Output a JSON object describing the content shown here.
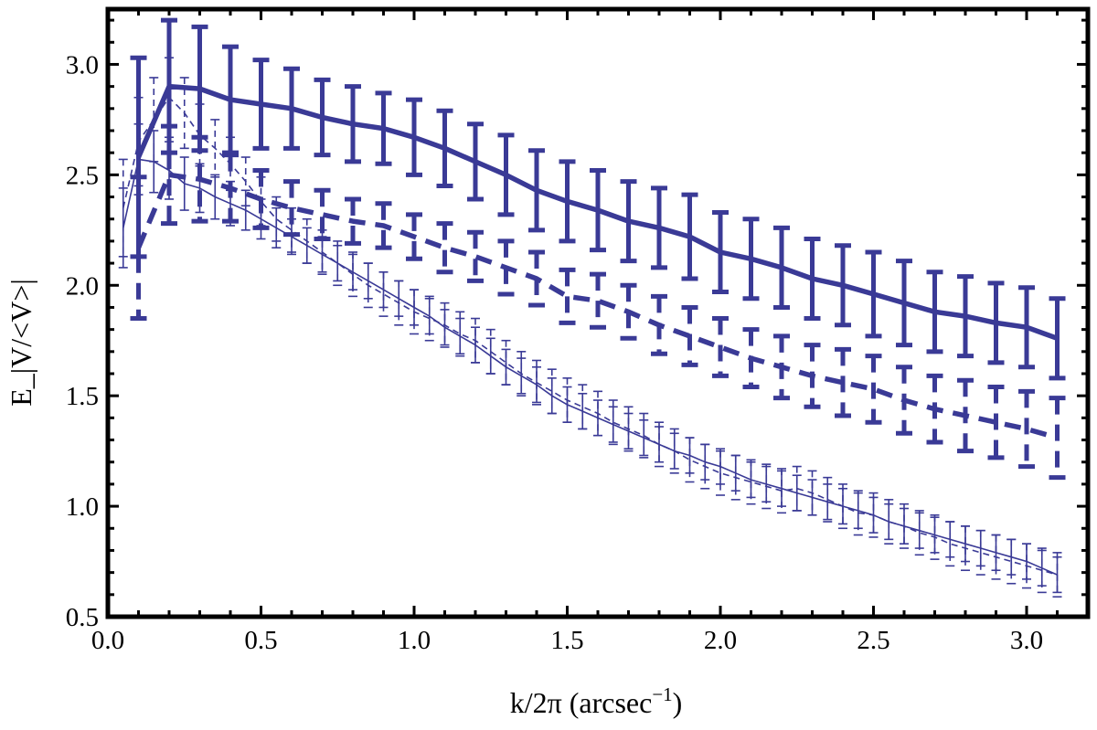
{
  "chart_data": {
    "type": "line",
    "title": "",
    "xlabel": "k/2π (arcsec",
    "xlabel_superscript": "−1",
    "xlabel_suffix": ")",
    "ylabel": "E_|V/<V>|",
    "xlim": [
      0.0,
      3.2
    ],
    "ylim": [
      0.5,
      3.25
    ],
    "x_ticks": [
      "0.0",
      "0.5",
      "1.0",
      "1.5",
      "2.0",
      "2.5",
      "3.0"
    ],
    "y_ticks": [
      "0.5",
      "1.0",
      "1.5",
      "2.0",
      "2.5",
      "3.0"
    ],
    "grid": false,
    "color": "#3a3a96",
    "series": [
      {
        "style": "solid-thick",
        "x": [
          0.1,
          0.2,
          0.3,
          0.4,
          0.5,
          0.6,
          0.7,
          0.8,
          0.9,
          1.0,
          1.1,
          1.2,
          1.3,
          1.4,
          1.5,
          1.6,
          1.7,
          1.8,
          1.9,
          2.0,
          2.1,
          2.2,
          2.3,
          2.4,
          2.5,
          2.6,
          2.7,
          2.8,
          2.9,
          3.0,
          3.1
        ],
        "y": [
          2.58,
          2.9,
          2.89,
          2.84,
          2.82,
          2.8,
          2.76,
          2.73,
          2.71,
          2.67,
          2.62,
          2.56,
          2.5,
          2.43,
          2.38,
          2.34,
          2.29,
          2.26,
          2.22,
          2.15,
          2.12,
          2.08,
          2.03,
          2.0,
          1.96,
          1.92,
          1.88,
          1.86,
          1.83,
          1.81,
          1.76
        ],
        "err": [
          0.45,
          0.3,
          0.28,
          0.24,
          0.2,
          0.18,
          0.17,
          0.17,
          0.16,
          0.17,
          0.17,
          0.17,
          0.18,
          0.18,
          0.18,
          0.18,
          0.18,
          0.18,
          0.19,
          0.18,
          0.18,
          0.18,
          0.18,
          0.18,
          0.19,
          0.19,
          0.18,
          0.18,
          0.18,
          0.18,
          0.18
        ]
      },
      {
        "style": "dashed-thick",
        "x": [
          0.1,
          0.2,
          0.3,
          0.4,
          0.5,
          0.6,
          0.7,
          0.8,
          0.9,
          1.0,
          1.1,
          1.2,
          1.3,
          1.4,
          1.5,
          1.6,
          1.7,
          1.8,
          1.9,
          2.0,
          2.1,
          2.2,
          2.3,
          2.4,
          2.5,
          2.6,
          2.7,
          2.8,
          2.9,
          3.0,
          3.1
        ],
        "y": [
          2.17,
          2.5,
          2.48,
          2.44,
          2.39,
          2.35,
          2.32,
          2.29,
          2.27,
          2.22,
          2.17,
          2.13,
          2.08,
          2.03,
          1.95,
          1.93,
          1.88,
          1.82,
          1.77,
          1.72,
          1.67,
          1.63,
          1.59,
          1.56,
          1.53,
          1.48,
          1.44,
          1.41,
          1.38,
          1.35,
          1.31
        ],
        "err": [
          0.32,
          0.22,
          0.19,
          0.15,
          0.13,
          0.12,
          0.11,
          0.1,
          0.1,
          0.1,
          0.11,
          0.11,
          0.12,
          0.12,
          0.12,
          0.12,
          0.12,
          0.13,
          0.13,
          0.13,
          0.13,
          0.14,
          0.14,
          0.15,
          0.15,
          0.15,
          0.15,
          0.16,
          0.16,
          0.17,
          0.18
        ]
      },
      {
        "style": "solid-thin",
        "x": [
          0.05,
          0.1,
          0.15,
          0.2,
          0.25,
          0.3,
          0.35,
          0.4,
          0.45,
          0.5,
          0.55,
          0.6,
          0.65,
          0.7,
          0.75,
          0.8,
          0.85,
          0.9,
          0.95,
          1.0,
          1.05,
          1.1,
          1.15,
          1.2,
          1.25,
          1.3,
          1.35,
          1.4,
          1.45,
          1.5,
          1.55,
          1.6,
          1.65,
          1.7,
          1.75,
          1.8,
          1.85,
          1.9,
          1.95,
          2.0,
          2.05,
          2.1,
          2.15,
          2.2,
          2.25,
          2.3,
          2.35,
          2.4,
          2.45,
          2.5,
          2.55,
          2.6,
          2.65,
          2.7,
          2.75,
          2.8,
          2.85,
          2.9,
          2.95,
          3.0,
          3.05,
          3.1
        ],
        "y": [
          2.26,
          2.57,
          2.56,
          2.52,
          2.46,
          2.44,
          2.4,
          2.37,
          2.34,
          2.3,
          2.26,
          2.22,
          2.18,
          2.14,
          2.1,
          2.06,
          2.02,
          1.98,
          1.94,
          1.9,
          1.86,
          1.81,
          1.77,
          1.73,
          1.68,
          1.63,
          1.59,
          1.55,
          1.5,
          1.46,
          1.43,
          1.4,
          1.37,
          1.34,
          1.31,
          1.28,
          1.25,
          1.23,
          1.2,
          1.18,
          1.15,
          1.12,
          1.1,
          1.08,
          1.06,
          1.04,
          1.02,
          1.0,
          0.98,
          0.96,
          0.93,
          0.91,
          0.89,
          0.87,
          0.85,
          0.83,
          0.81,
          0.79,
          0.77,
          0.75,
          0.72,
          0.69
        ],
        "err": [
          0.18,
          0.16,
          0.14,
          0.13,
          0.12,
          0.11,
          0.1,
          0.1,
          0.09,
          0.09,
          0.09,
          0.08,
          0.08,
          0.08,
          0.08,
          0.08,
          0.08,
          0.08,
          0.08,
          0.08,
          0.08,
          0.08,
          0.08,
          0.08,
          0.08,
          0.08,
          0.08,
          0.08,
          0.08,
          0.08,
          0.08,
          0.08,
          0.08,
          0.08,
          0.08,
          0.08,
          0.08,
          0.08,
          0.08,
          0.08,
          0.08,
          0.08,
          0.08,
          0.08,
          0.08,
          0.08,
          0.08,
          0.08,
          0.08,
          0.08,
          0.08,
          0.08,
          0.08,
          0.08,
          0.08,
          0.08,
          0.08,
          0.08,
          0.08,
          0.08,
          0.08,
          0.08
        ]
      },
      {
        "style": "dashed-thin",
        "x": [
          0.05,
          0.1,
          0.15,
          0.2,
          0.25,
          0.3,
          0.35,
          0.4,
          0.45,
          0.5,
          0.55,
          0.6,
          0.65,
          0.7,
          0.75,
          0.8,
          0.85,
          0.9,
          0.95,
          1.0,
          1.05,
          1.1,
          1.15,
          1.2,
          1.25,
          1.3,
          1.35,
          1.4,
          1.45,
          1.5,
          1.55,
          1.6,
          1.65,
          1.7,
          1.75,
          1.8,
          1.85,
          1.9,
          1.95,
          2.0,
          2.05,
          2.1,
          2.15,
          2.2,
          2.25,
          2.3,
          2.35,
          2.4,
          2.45,
          2.5,
          2.55,
          2.6,
          2.65,
          2.7,
          2.75,
          2.8,
          2.85,
          2.9,
          2.95,
          3.0,
          3.05,
          3.1
        ],
        "y": [
          2.35,
          2.65,
          2.75,
          2.85,
          2.78,
          2.68,
          2.62,
          2.55,
          2.47,
          2.38,
          2.3,
          2.25,
          2.2,
          2.15,
          2.1,
          2.05,
          2.0,
          1.96,
          1.92,
          1.88,
          1.85,
          1.82,
          1.78,
          1.75,
          1.7,
          1.65,
          1.6,
          1.56,
          1.52,
          1.48,
          1.45,
          1.42,
          1.38,
          1.35,
          1.32,
          1.28,
          1.25,
          1.21,
          1.18,
          1.15,
          1.13,
          1.11,
          1.09,
          1.07,
          1.08,
          1.06,
          1.03,
          1.0,
          0.97,
          0.96,
          0.93,
          0.91,
          0.88,
          0.86,
          0.83,
          0.81,
          0.79,
          0.77,
          0.75,
          0.73,
          0.71,
          0.69
        ],
        "err": [
          0.22,
          0.2,
          0.19,
          0.18,
          0.16,
          0.14,
          0.13,
          0.12,
          0.11,
          0.11,
          0.1,
          0.1,
          0.1,
          0.1,
          0.1,
          0.1,
          0.1,
          0.1,
          0.1,
          0.1,
          0.1,
          0.1,
          0.1,
          0.1,
          0.1,
          0.1,
          0.1,
          0.1,
          0.1,
          0.1,
          0.1,
          0.1,
          0.1,
          0.1,
          0.1,
          0.1,
          0.1,
          0.1,
          0.1,
          0.1,
          0.1,
          0.1,
          0.1,
          0.1,
          0.1,
          0.1,
          0.1,
          0.1,
          0.1,
          0.1,
          0.1,
          0.1,
          0.1,
          0.1,
          0.1,
          0.1,
          0.1,
          0.1,
          0.1,
          0.1,
          0.1,
          0.1
        ]
      }
    ]
  }
}
